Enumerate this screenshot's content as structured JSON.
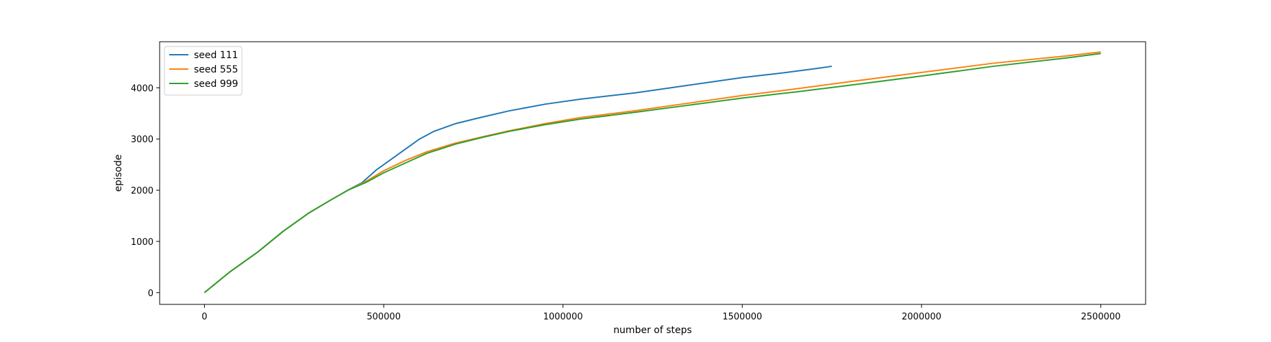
{
  "chart_data": {
    "type": "line",
    "xlabel": "number of steps",
    "ylabel": "episode",
    "xlim": [
      -125000,
      2625000
    ],
    "ylim": [
      -230,
      4900
    ],
    "xticks": [
      0,
      500000,
      1000000,
      1500000,
      2000000,
      2500000
    ],
    "yticks": [
      0,
      1000,
      2000,
      3000,
      4000
    ],
    "grid": false,
    "legend_position": "top-left",
    "series": [
      {
        "name": "seed 111",
        "color": "#1f77b4",
        "points": [
          [
            0,
            0
          ],
          [
            70000,
            400
          ],
          [
            150000,
            800
          ],
          [
            220000,
            1200
          ],
          [
            290000,
            1550
          ],
          [
            350000,
            1800
          ],
          [
            400000,
            2000
          ],
          [
            440000,
            2150
          ],
          [
            480000,
            2400
          ],
          [
            520000,
            2600
          ],
          [
            560000,
            2800
          ],
          [
            600000,
            3000
          ],
          [
            640000,
            3150
          ],
          [
            700000,
            3300
          ],
          [
            770000,
            3420
          ],
          [
            850000,
            3550
          ],
          [
            950000,
            3680
          ],
          [
            1050000,
            3780
          ],
          [
            1200000,
            3900
          ],
          [
            1300000,
            4000
          ],
          [
            1400000,
            4100
          ],
          [
            1500000,
            4200
          ],
          [
            1600000,
            4280
          ],
          [
            1700000,
            4370
          ],
          [
            1750000,
            4420
          ]
        ]
      },
      {
        "name": "seed 555",
        "color": "#ff7f0e",
        "points": [
          [
            0,
            0
          ],
          [
            70000,
            400
          ],
          [
            150000,
            800
          ],
          [
            220000,
            1200
          ],
          [
            290000,
            1550
          ],
          [
            350000,
            1800
          ],
          [
            400000,
            2000
          ],
          [
            450000,
            2170
          ],
          [
            500000,
            2380
          ],
          [
            560000,
            2580
          ],
          [
            620000,
            2750
          ],
          [
            700000,
            2920
          ],
          [
            780000,
            3050
          ],
          [
            850000,
            3160
          ],
          [
            950000,
            3300
          ],
          [
            1050000,
            3420
          ],
          [
            1200000,
            3550
          ],
          [
            1350000,
            3700
          ],
          [
            1500000,
            3850
          ],
          [
            1650000,
            3980
          ],
          [
            1800000,
            4120
          ],
          [
            2000000,
            4300
          ],
          [
            2200000,
            4480
          ],
          [
            2400000,
            4620
          ],
          [
            2500000,
            4700
          ]
        ]
      },
      {
        "name": "seed 999",
        "color": "#2ca02c",
        "points": [
          [
            0,
            0
          ],
          [
            70000,
            400
          ],
          [
            150000,
            800
          ],
          [
            220000,
            1200
          ],
          [
            290000,
            1550
          ],
          [
            350000,
            1800
          ],
          [
            400000,
            2000
          ],
          [
            450000,
            2150
          ],
          [
            500000,
            2340
          ],
          [
            560000,
            2530
          ],
          [
            620000,
            2720
          ],
          [
            700000,
            2900
          ],
          [
            780000,
            3040
          ],
          [
            850000,
            3150
          ],
          [
            950000,
            3280
          ],
          [
            1050000,
            3390
          ],
          [
            1200000,
            3520
          ],
          [
            1350000,
            3660
          ],
          [
            1500000,
            3800
          ],
          [
            1650000,
            3920
          ],
          [
            1800000,
            4050
          ],
          [
            2000000,
            4230
          ],
          [
            2200000,
            4420
          ],
          [
            2400000,
            4580
          ],
          [
            2500000,
            4670
          ]
        ]
      }
    ]
  }
}
